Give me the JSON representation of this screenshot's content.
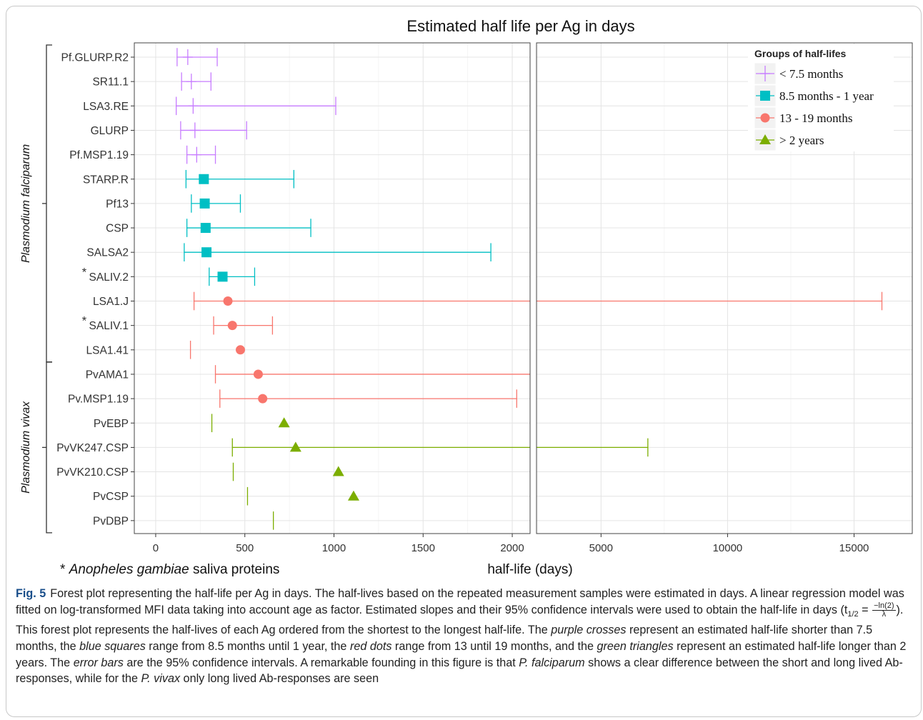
{
  "chart_data": {
    "type": "forest",
    "title": "Estimated half life per Ag in days",
    "xlabel": "half-life (days)",
    "panels": [
      {
        "xlim": [
          -120,
          2100
        ],
        "ticks": [
          0,
          500,
          1000,
          1500,
          2000
        ]
      },
      {
        "xlim": [
          2450,
          17300
        ],
        "ticks": [
          5000,
          10000,
          15000
        ]
      }
    ],
    "legend": {
      "title": "Groups of half-lifes",
      "placement": "top-right",
      "entries": [
        {
          "label": "< 7.5 months",
          "color": "#c77cff",
          "marker": "cross"
        },
        {
          "label": "8.5 months - 1 year",
          "color": "#00bfc4",
          "marker": "square"
        },
        {
          "label": "13 - 19 months",
          "color": "#f8766d",
          "marker": "circle"
        },
        {
          "label": "> 2 years",
          "color": "#7cae00",
          "marker": "triangle"
        }
      ]
    },
    "groups": [
      {
        "label": "Plasmodium falciparum",
        "from": 0,
        "to": 12
      },
      {
        "label": "Plasmodium vivax",
        "from": 13,
        "to": 19
      }
    ],
    "rows": [
      {
        "label": "Pf.GLURP.R2",
        "star": false,
        "group": 0,
        "est": 180,
        "lo": 120,
        "hi": 345
      },
      {
        "label": "SR11.1",
        "star": false,
        "group": 0,
        "est": 200,
        "lo": 145,
        "hi": 310
      },
      {
        "label": "LSA3.RE",
        "star": false,
        "group": 0,
        "est": 210,
        "lo": 115,
        "hi": 1010
      },
      {
        "label": "GLURP",
        "star": false,
        "group": 0,
        "est": 220,
        "lo": 140,
        "hi": 510
      },
      {
        "label": "Pf.MSP1.19",
        "star": false,
        "group": 0,
        "est": 230,
        "lo": 175,
        "hi": 335
      },
      {
        "label": "STARP.R",
        "star": false,
        "group": 1,
        "est": 270,
        "lo": 170,
        "hi": 775
      },
      {
        "label": "Pf13",
        "star": false,
        "group": 1,
        "est": 275,
        "lo": 200,
        "hi": 475
      },
      {
        "label": "CSP",
        "star": false,
        "group": 1,
        "est": 280,
        "lo": 175,
        "hi": 870
      },
      {
        "label": "SALSA2",
        "star": false,
        "group": 1,
        "est": 285,
        "lo": 160,
        "hi": 1880
      },
      {
        "label": "SALIV.2",
        "star": true,
        "group": 1,
        "est": 375,
        "lo": 300,
        "hi": 555
      },
      {
        "label": "LSA1.J",
        "star": false,
        "group": 2,
        "est": 405,
        "lo": 215,
        "hi": 16100
      },
      {
        "label": "SALIV.1",
        "star": true,
        "group": 2,
        "est": 430,
        "lo": 325,
        "hi": 655
      },
      {
        "label": "LSA1.41",
        "star": false,
        "group": 2,
        "est": 475,
        "lo": 195,
        "hi": null
      },
      {
        "label": "PvAMA1",
        "star": false,
        "group": 2,
        "est": 575,
        "lo": 335,
        "hi": 2380
      },
      {
        "label": "Pv.MSP1.19",
        "star": false,
        "group": 2,
        "est": 600,
        "lo": 360,
        "hi": 2025
      },
      {
        "label": "PvEBP",
        "star": false,
        "group": 3,
        "est": 720,
        "lo": 315,
        "hi": null
      },
      {
        "label": "PvVK247.CSP",
        "star": false,
        "group": 3,
        "est": 785,
        "lo": 430,
        "hi": 6850
      },
      {
        "label": "PvVK210.CSP",
        "star": false,
        "group": 3,
        "est": 1025,
        "lo": 435,
        "hi": null
      },
      {
        "label": "PvCSP",
        "star": false,
        "group": 3,
        "est": 1110,
        "lo": 515,
        "hi": null
      },
      {
        "label": "PvDBP",
        "star": false,
        "group": 3,
        "est": null,
        "lo": 660,
        "hi": null
      }
    ],
    "footnote_star": "*",
    "footnote_text": "Anopheles gambiae",
    "footnote_rest": "saliva proteins"
  },
  "caption": {
    "label": "Fig. 5",
    "p1": "Forest plot representing the half-life per Ag in days. The half-lives based on the repeated measurement samples were estimated in days. A linear regression model was fitted on log-transformed MFI data taking into account age as factor. Estimated slopes and their 95% confidence intervals were used to obtain the half-life in days (t",
    "sub": "1/2",
    "eq": " = ",
    "frac_num": "−ln(2)",
    "frac_den": "λ",
    "p2": "). This forest plot represents the half-lives of each Ag ordered from the shortest to the longest half-life. The ",
    "t_purple": "purple crosses",
    "p3": " represent an estimated half-life shorter than 7.5 months, the ",
    "t_blue": "blue squares",
    "p4": " range from 8.5 months until 1 year, the ",
    "t_red": "red dots",
    "p5": " range from 13 until 19 months, and the ",
    "t_green": "green triangles",
    "p6": " represent an estimated half-life longer than 2 years. The ",
    "t_err": "error bars",
    "p7": " are the 95% confidence intervals. A remarkable founding in this figure is that ",
    "t_pf": "P. falciparum",
    "p8": " shows a clear difference between the short and long lived Ab-responses, while for the ",
    "t_pv": "P. vivax",
    "p9": " only long lived Ab-responses are seen"
  }
}
